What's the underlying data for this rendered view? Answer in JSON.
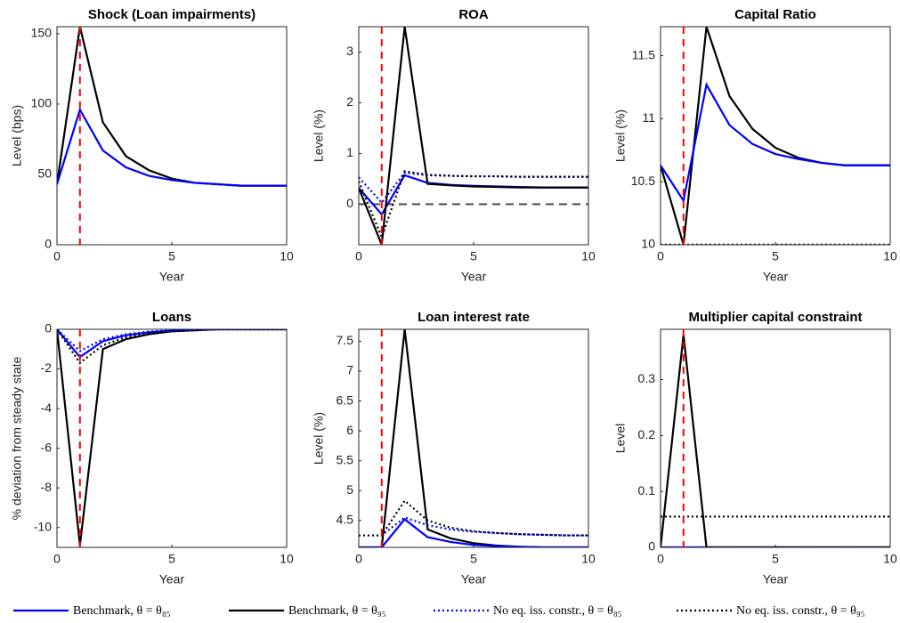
{
  "chart_data": [
    {
      "type": "line",
      "title": "Shock (Loan impairments)",
      "ylabel": "Level (bps)",
      "xlabel": "Year",
      "x": [
        0,
        1,
        2,
        3,
        4,
        5,
        6,
        7,
        8,
        9,
        10
      ],
      "xlim": [
        0,
        10
      ],
      "xticks": [
        0,
        5,
        10
      ],
      "ylim": [
        0,
        155
      ],
      "yticks": [
        0,
        50,
        100,
        150
      ],
      "vline": 1,
      "vline_color": "#ff0000",
      "series": [
        {
          "name": "Benchmark, θ = θ₉₅",
          "color": "#000000",
          "style": "solid",
          "values": [
            43,
            155,
            87,
            63,
            53,
            47,
            44,
            43,
            42,
            42,
            42
          ]
        },
        {
          "name": "Benchmark, θ = θ₈₅",
          "color": "#0000ff",
          "style": "solid",
          "values": [
            43,
            96,
            67,
            55,
            49,
            46,
            44,
            43,
            42,
            42,
            42
          ]
        }
      ]
    },
    {
      "type": "line",
      "title": "ROA",
      "ylabel": "Level (%)",
      "xlabel": "Year",
      "x": [
        0,
        1,
        2,
        3,
        4,
        5,
        6,
        7,
        8,
        9,
        10
      ],
      "xlim": [
        0,
        10
      ],
      "xticks": [
        0,
        5,
        10
      ],
      "ylim": [
        -0.8,
        3.5
      ],
      "yticks": [
        0,
        1,
        2,
        3
      ],
      "vline": 1,
      "vline_color": "#ff0000",
      "hline": 0,
      "hline_color": "#555555",
      "series": [
        {
          "name": "Benchmark, θ = θ₈₅",
          "color": "#0000ff",
          "style": "solid",
          "values": [
            0.32,
            -0.2,
            0.57,
            0.42,
            0.38,
            0.36,
            0.35,
            0.34,
            0.33,
            0.33,
            0.33
          ]
        },
        {
          "name": "Benchmark, θ = θ₉₅",
          "color": "#000000",
          "style": "solid",
          "values": [
            0.32,
            -0.8,
            3.5,
            0.4,
            0.37,
            0.35,
            0.34,
            0.33,
            0.33,
            0.33,
            0.33
          ]
        },
        {
          "name": "No eq. iss. constr., θ = θ₈₅",
          "color": "#0000ff",
          "style": "dotted",
          "values": [
            0.53,
            0.03,
            0.62,
            0.57,
            0.56,
            0.55,
            0.55,
            0.54,
            0.54,
            0.54,
            0.54
          ]
        },
        {
          "name": "No eq. iss. constr., θ = θ₉₅",
          "color": "#000000",
          "style": "dotted",
          "values": [
            0.45,
            -0.65,
            0.65,
            0.58,
            0.56,
            0.55,
            0.55,
            0.54,
            0.54,
            0.54,
            0.54
          ]
        }
      ]
    },
    {
      "type": "line",
      "title": "Capital Ratio",
      "ylabel": "Level (%)",
      "xlabel": "Year",
      "x": [
        0,
        1,
        2,
        3,
        4,
        5,
        6,
        7,
        8,
        9,
        10
      ],
      "xlim": [
        0,
        10
      ],
      "xticks": [
        0,
        5,
        10
      ],
      "ylim": [
        10,
        11.73
      ],
      "yticks": [
        10,
        10.5,
        11,
        11.5
      ],
      "vline": 1,
      "vline_color": "#ff0000",
      "series": [
        {
          "name": "No eq. iss. constr., θ = θ₈₅",
          "color": "#0000ff",
          "style": "dotted",
          "values": [
            10,
            10,
            10,
            10,
            10,
            10,
            10,
            10,
            10,
            10,
            10
          ]
        },
        {
          "name": "No eq. iss. constr., θ = θ₉₅",
          "color": "#000000",
          "style": "dotted",
          "values": [
            10,
            10,
            10,
            10,
            10,
            10,
            10,
            10,
            10,
            10,
            10
          ]
        },
        {
          "name": "Benchmark, θ = θ₉₅",
          "color": "#000000",
          "style": "solid",
          "values": [
            10.63,
            10,
            11.73,
            11.18,
            10.92,
            10.77,
            10.69,
            10.65,
            10.63,
            10.63,
            10.63
          ]
        },
        {
          "name": "Benchmark, θ = θ₈₅",
          "color": "#0000ff",
          "style": "solid",
          "values": [
            10.63,
            10.35,
            11.27,
            10.95,
            10.8,
            10.72,
            10.68,
            10.65,
            10.63,
            10.63,
            10.63
          ]
        }
      ]
    },
    {
      "type": "line",
      "title": "Loans",
      "ylabel": "% deviation from steady state",
      "xlabel": "Year",
      "x": [
        0,
        1,
        2,
        3,
        4,
        5,
        6,
        7,
        8,
        9,
        10
      ],
      "xlim": [
        0,
        10
      ],
      "xticks": [
        0,
        5,
        10
      ],
      "ylim": [
        -11,
        0
      ],
      "yticks": [
        -10,
        -8,
        -6,
        -4,
        -2,
        0
      ],
      "vline": 1,
      "vline_color": "#ff0000",
      "series": [
        {
          "name": "Benchmark, θ = θ₉₅",
          "color": "#000000",
          "style": "solid",
          "values": [
            0,
            -10.9,
            -1,
            -0.5,
            -0.25,
            -0.1,
            -0.05,
            0,
            0,
            0,
            0
          ]
        },
        {
          "name": "Benchmark, θ = θ₈₅",
          "color": "#0000ff",
          "style": "solid",
          "values": [
            0,
            -1.4,
            -0.6,
            -0.3,
            -0.15,
            -0.07,
            -0.03,
            0,
            0,
            0,
            0
          ]
        },
        {
          "name": "No eq. iss. constr., θ = θ₈₅",
          "color": "#0000ff",
          "style": "dotted",
          "values": [
            0,
            -1.1,
            -0.5,
            -0.25,
            -0.12,
            -0.06,
            -0.03,
            0,
            0,
            0,
            0
          ]
        },
        {
          "name": "No eq. iss. constr., θ = θ₉₅",
          "color": "#000000",
          "style": "dotted",
          "values": [
            0,
            -1.7,
            -0.8,
            -0.4,
            -0.2,
            -0.1,
            -0.05,
            0,
            0,
            0,
            0
          ]
        }
      ]
    },
    {
      "type": "line",
      "title": "Loan interest rate",
      "ylabel": "Level (%)",
      "xlabel": "Year",
      "x": [
        0,
        1,
        2,
        3,
        4,
        5,
        6,
        7,
        8,
        9,
        10
      ],
      "xlim": [
        0,
        10
      ],
      "xticks": [
        0,
        5,
        10
      ],
      "ylim": [
        4.05,
        7.7
      ],
      "yticks": [
        4.5,
        5,
        5.5,
        6,
        6.5,
        7,
        7.5
      ],
      "vline": 1,
      "vline_color": "#ff0000",
      "series": [
        {
          "name": "Benchmark, θ = θ₉₅",
          "color": "#000000",
          "style": "solid",
          "values": [
            4.05,
            4.05,
            7.7,
            4.35,
            4.2,
            4.12,
            4.08,
            4.06,
            4.05,
            4.05,
            4.05
          ]
        },
        {
          "name": "Benchmark, θ = θ₈₅",
          "color": "#0000ff",
          "style": "solid",
          "values": [
            4.05,
            4.05,
            4.52,
            4.22,
            4.14,
            4.09,
            4.07,
            4.06,
            4.05,
            4.05,
            4.05
          ]
        },
        {
          "name": "No eq. iss. constr., θ = θ₈₅",
          "color": "#0000ff",
          "style": "dotted",
          "values": [
            4.25,
            4.25,
            4.55,
            4.42,
            4.35,
            4.31,
            4.29,
            4.27,
            4.26,
            4.25,
            4.25
          ]
        },
        {
          "name": "No eq. iss. constr., θ = θ₉₅",
          "color": "#000000",
          "style": "dotted",
          "values": [
            4.25,
            4.25,
            4.83,
            4.5,
            4.38,
            4.32,
            4.29,
            4.27,
            4.26,
            4.25,
            4.25
          ]
        }
      ]
    },
    {
      "type": "line",
      "title": "Multiplier capital constraint",
      "ylabel": "Level",
      "xlabel": "Year",
      "x": [
        0,
        1,
        2,
        3,
        4,
        5,
        6,
        7,
        8,
        9,
        10
      ],
      "xlim": [
        0,
        10
      ],
      "xticks": [
        0,
        5,
        10
      ],
      "ylim": [
        0,
        0.39
      ],
      "yticks": [
        0,
        0.1,
        0.2,
        0.3
      ],
      "vline": 1,
      "vline_color": "#ff0000",
      "series": [
        {
          "name": "No eq. iss. constr., θ = θ₈₅",
          "color": "#0000ff",
          "style": "dotted",
          "values": [
            0,
            0,
            0,
            0,
            0,
            0,
            0,
            0,
            0,
            0,
            0
          ]
        },
        {
          "name": "Benchmark, θ = θ₈₅",
          "color": "#0000ff",
          "style": "solid",
          "values": [
            0,
            0,
            0,
            0,
            0,
            0,
            0,
            0,
            0,
            0,
            0
          ]
        },
        {
          "name": "Benchmark, θ = θ₉₅",
          "color": "#000000",
          "style": "solid",
          "values": [
            0,
            0.38,
            0,
            0,
            0,
            0,
            0,
            0,
            0,
            0,
            0
          ]
        },
        {
          "name": "No eq. iss. constr., θ = θ₉₅",
          "color": "#000000",
          "style": "dotted",
          "values": [
            0.055,
            0.055,
            0.055,
            0.055,
            0.055,
            0.055,
            0.055,
            0.055,
            0.055,
            0.055,
            0.055
          ]
        }
      ]
    }
  ]
}
